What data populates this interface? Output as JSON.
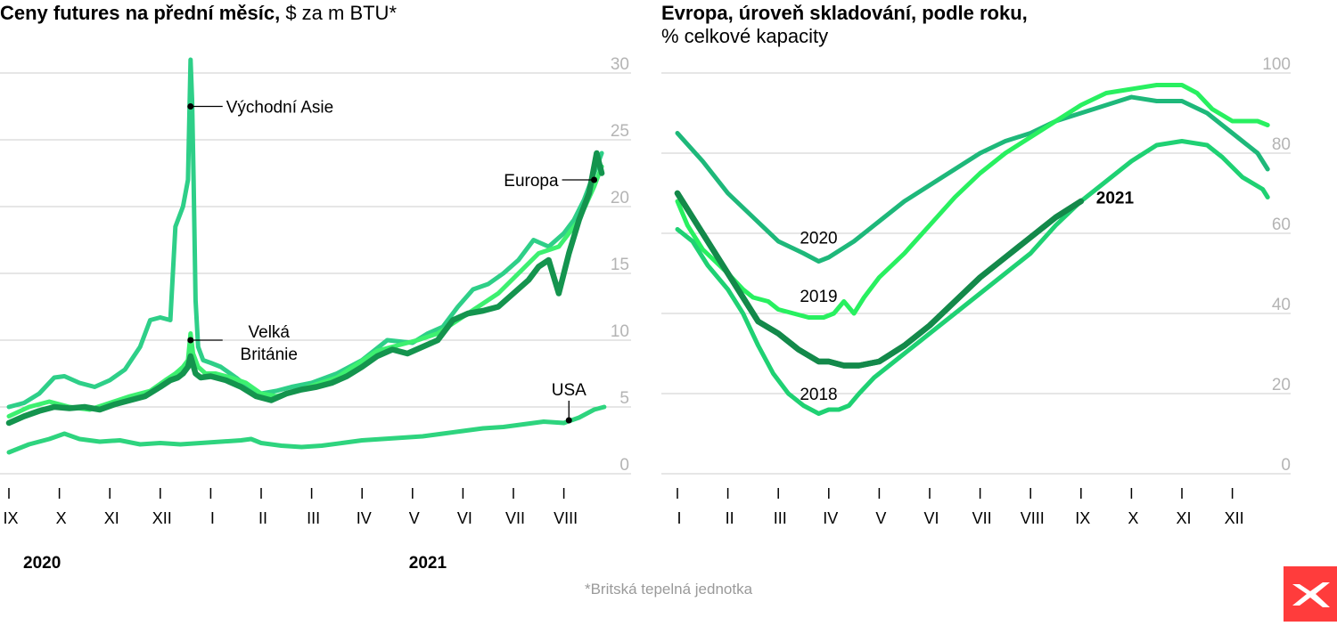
{
  "colors": {
    "asia": "#2ecf88",
    "europe": "#14944e",
    "uk": "#3df070",
    "usa": "#2ed47e",
    "s2018": "#1fd173",
    "s2019": "#28f060",
    "s2020": "#1eb87a",
    "s2021": "#13894a",
    "grid": "#cccccc",
    "logo": "#ff3c3c"
  },
  "logo_icon": "xtb-x-logo-icon",
  "footnote": "*Britská tepelná jednotka",
  "chart_data": [
    {
      "type": "line",
      "title_bold": "Ceny futures na přední měsíc,",
      "title_rest": " $ za m BTU*",
      "ylim": [
        0,
        30
      ],
      "yticks": [
        0,
        5,
        10,
        15,
        20,
        25,
        30
      ],
      "xlim": [
        0,
        12.3
      ],
      "months": [
        "IX",
        "X",
        "XI",
        "XII",
        "I",
        "II",
        "III",
        "IV",
        "V",
        "VI",
        "VII",
        "VIII"
      ],
      "years": [
        {
          "label": "2020",
          "month_index": 0
        },
        {
          "label": "2021",
          "month_index": 8
        }
      ],
      "series": [
        {
          "name": "Východní Asie",
          "key": "asia",
          "x": [
            0,
            0.3,
            0.6,
            0.9,
            1.1,
            1.4,
            1.7,
            2.0,
            2.3,
            2.6,
            2.8,
            3.0,
            3.2,
            3.3,
            3.45,
            3.55,
            3.6,
            3.63,
            3.66,
            3.7,
            3.75,
            3.85,
            4.0,
            4.2,
            4.5,
            4.8,
            5.0,
            5.3,
            5.6,
            6.0,
            6.5,
            7.0,
            7.5,
            8.0,
            8.3,
            8.6,
            8.9,
            9.2,
            9.5,
            9.8,
            10.1,
            10.4,
            10.7,
            11.0,
            11.2,
            11.4,
            11.6,
            11.75
          ],
          "y": [
            5.0,
            5.3,
            6.0,
            7.2,
            7.3,
            6.8,
            6.5,
            7.0,
            7.8,
            9.5,
            11.5,
            11.7,
            11.5,
            18.5,
            20.0,
            22.0,
            31.0,
            28.0,
            22.0,
            13.0,
            9.5,
            8.5,
            8.3,
            8.0,
            7.2,
            6.3,
            6.0,
            6.2,
            6.5,
            6.8,
            7.5,
            8.5,
            10.0,
            9.8,
            10.5,
            11.0,
            12.5,
            13.8,
            14.2,
            15.0,
            16.0,
            17.5,
            17.0,
            18.0,
            19.0,
            20.5,
            22.5,
            24.0
          ]
        },
        {
          "name": "Europa",
          "key": "europe",
          "x": [
            0,
            0.3,
            0.6,
            0.9,
            1.2,
            1.5,
            1.8,
            2.1,
            2.4,
            2.7,
            3.0,
            3.2,
            3.35,
            3.45,
            3.55,
            3.6,
            3.7,
            3.8,
            4.0,
            4.3,
            4.6,
            4.9,
            5.2,
            5.5,
            5.8,
            6.1,
            6.4,
            6.7,
            7.0,
            7.3,
            7.6,
            7.9,
            8.2,
            8.5,
            8.8,
            9.1,
            9.4,
            9.7,
            10.0,
            10.3,
            10.5,
            10.7,
            10.9,
            11.1,
            11.3,
            11.5,
            11.65,
            11.75
          ],
          "y": [
            3.8,
            4.3,
            4.7,
            5.0,
            4.9,
            5.0,
            4.8,
            5.2,
            5.5,
            5.8,
            6.5,
            7.0,
            7.2,
            7.5,
            8.0,
            8.8,
            7.5,
            7.2,
            7.3,
            7.0,
            6.5,
            5.8,
            5.5,
            6.0,
            6.3,
            6.5,
            6.8,
            7.3,
            8.0,
            8.8,
            9.3,
            9.0,
            9.5,
            10.0,
            11.5,
            12.0,
            12.2,
            12.5,
            13.5,
            14.5,
            15.5,
            16.0,
            13.5,
            16.5,
            19.0,
            21.0,
            24.0,
            22.5
          ]
        },
        {
          "name": "Velká Británie",
          "key": "uk",
          "x": [
            0,
            0.4,
            0.8,
            1.2,
            1.6,
            2.0,
            2.4,
            2.8,
            3.1,
            3.3,
            3.45,
            3.55,
            3.6,
            3.65,
            3.75,
            3.9,
            4.1,
            4.4,
            4.7,
            5.0,
            5.3,
            5.7,
            6.1,
            6.5,
            6.9,
            7.3,
            7.7,
            8.1,
            8.5,
            8.9,
            9.3,
            9.7,
            10.1,
            10.5,
            10.9,
            11.3,
            11.6,
            11.75
          ],
          "y": [
            4.3,
            5.0,
            5.4,
            5.0,
            4.8,
            5.3,
            5.8,
            6.2,
            7.0,
            7.5,
            8.0,
            8.5,
            10.5,
            9.0,
            8.0,
            7.5,
            7.5,
            7.2,
            6.8,
            6.0,
            5.8,
            6.2,
            6.7,
            7.2,
            8.2,
            9.2,
            9.6,
            10.0,
            10.5,
            11.5,
            12.5,
            13.5,
            15.0,
            16.5,
            17.0,
            19.0,
            21.5,
            23.0
          ]
        },
        {
          "name": "USA",
          "key": "usa",
          "x": [
            0,
            0.4,
            0.8,
            1.1,
            1.4,
            1.8,
            2.2,
            2.6,
            3.0,
            3.4,
            3.8,
            4.2,
            4.6,
            4.8,
            5.0,
            5.4,
            5.8,
            6.2,
            6.6,
            7.0,
            7.4,
            7.8,
            8.2,
            8.6,
            9.0,
            9.4,
            9.8,
            10.2,
            10.6,
            11.0,
            11.3,
            11.6,
            11.8
          ],
          "y": [
            1.6,
            2.2,
            2.6,
            3.0,
            2.6,
            2.4,
            2.5,
            2.2,
            2.3,
            2.2,
            2.3,
            2.4,
            2.5,
            2.6,
            2.3,
            2.1,
            2.0,
            2.1,
            2.3,
            2.5,
            2.6,
            2.7,
            2.8,
            3.0,
            3.2,
            3.4,
            3.5,
            3.7,
            3.9,
            3.8,
            4.2,
            4.8,
            5.0
          ]
        }
      ],
      "annotations": [
        {
          "text": "Východní Asie",
          "series": "asia",
          "x": 3.6,
          "y": 27.5
        },
        {
          "text": "Europa",
          "series": "europe",
          "x": 11.6,
          "y": 22.0
        },
        {
          "text_lines": [
            "Velká",
            "Británie"
          ],
          "series": "uk",
          "x": 3.6,
          "y": 10.0
        },
        {
          "text": "USA",
          "series": "usa",
          "x": 11.1,
          "y": 4.0
        }
      ]
    },
    {
      "type": "line",
      "title_bold": "Evropa, úroveň skladování, podle roku,",
      "title_rest": "% celkové kapacity",
      "ylim": [
        0,
        100
      ],
      "yticks": [
        0,
        20,
        40,
        60,
        80,
        100
      ],
      "xlim": [
        0,
        12.2
      ],
      "months": [
        "I",
        "II",
        "III",
        "IV",
        "V",
        "VI",
        "VII",
        "VIII",
        "IX",
        "X",
        "XI",
        "XII"
      ],
      "series": [
        {
          "name": "2020",
          "key": "s2020",
          "x": [
            0,
            0.5,
            1.0,
            1.5,
            2.0,
            2.5,
            2.8,
            3.0,
            3.5,
            4.0,
            4.5,
            5.0,
            5.5,
            6.0,
            6.5,
            7.0,
            7.5,
            8.0,
            8.5,
            9.0,
            9.5,
            10.0,
            10.5,
            11.0,
            11.5,
            11.7
          ],
          "y": [
            85,
            78,
            70,
            64,
            58,
            55,
            53,
            54,
            58,
            63,
            68,
            72,
            76,
            80,
            83,
            85,
            88,
            90,
            92,
            94,
            93,
            93,
            90,
            85,
            80,
            76
          ]
        },
        {
          "name": "2019",
          "key": "s2019",
          "x": [
            0,
            0.2,
            0.5,
            1.0,
            1.3,
            1.5,
            1.8,
            2.0,
            2.3,
            2.6,
            2.9,
            3.1,
            3.3,
            3.5,
            3.7,
            4.0,
            4.5,
            5.0,
            5.5,
            6.0,
            6.5,
            7.0,
            7.5,
            8.0,
            8.5,
            9.0,
            9.5,
            10.0,
            10.3,
            10.6,
            11.0,
            11.5,
            11.7
          ],
          "y": [
            68,
            62,
            56,
            50,
            46,
            44,
            43,
            41,
            40,
            39,
            39,
            40,
            43,
            40,
            44,
            49,
            55,
            62,
            69,
            75,
            80,
            84,
            88,
            92,
            95,
            96,
            97,
            97,
            95,
            91,
            88,
            88,
            87
          ]
        },
        {
          "name": "2018",
          "key": "s2018",
          "x": [
            0,
            0.3,
            0.6,
            1.0,
            1.3,
            1.6,
            1.9,
            2.2,
            2.5,
            2.8,
            3.0,
            3.2,
            3.4,
            3.6,
            3.9,
            4.2,
            4.4
          ],
          "y": [
            61,
            58,
            52,
            46,
            40,
            32,
            25,
            20,
            17,
            15,
            16,
            16,
            17,
            20,
            24,
            27,
            29
          ]
        },
        {
          "name": "2021",
          "key": "s2021",
          "x": [
            0,
            0.5,
            1.0,
            1.3,
            1.6,
            2.0,
            2.4,
            2.8,
            3.0,
            3.3,
            3.6,
            4.0,
            4.5,
            5.0,
            5.5,
            6.0,
            6.5,
            7.0,
            7.5,
            8.0
          ],
          "y": [
            70,
            60,
            50,
            44,
            38,
            35,
            31,
            28,
            28,
            27,
            27,
            28,
            32,
            37,
            43,
            49,
            54,
            59,
            64,
            68
          ]
        },
        {
          "name": "2018b",
          "key": "s2018",
          "x": [
            4.4,
            4.8,
            5.2,
            5.6,
            6.0,
            6.5,
            7.0,
            7.5,
            8.0,
            8.5,
            9.0,
            9.5,
            10.0,
            10.5,
            10.8,
            11.2,
            11.6,
            11.7
          ],
          "y": [
            29,
            33,
            37,
            41,
            45,
            50,
            55,
            62,
            68,
            73,
            78,
            82,
            83,
            82,
            79,
            74,
            71,
            69
          ]
        }
      ],
      "labels": [
        {
          "text": "2020",
          "x": 2.8,
          "y": 59
        },
        {
          "text": "2019",
          "x": 2.8,
          "y": 44.5
        },
        {
          "text": "2018",
          "x": 2.8,
          "y": 20
        },
        {
          "text": "2021",
          "x": 8.3,
          "y": 69,
          "bold": true
        }
      ]
    }
  ]
}
